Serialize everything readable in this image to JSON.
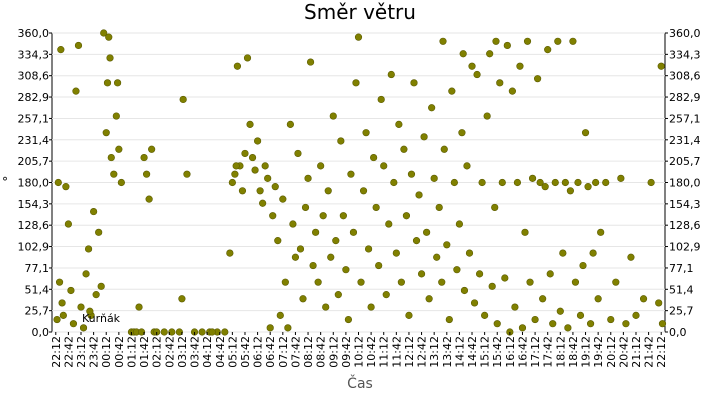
{
  "chart_data": {
    "type": "scatter",
    "title": "Směr větru",
    "xlabel": "Čas",
    "ylabel": "°",
    "annotation": "Kurňák",
    "color": "#808000",
    "grid": true,
    "xlim": [
      -0.15,
      24.15
    ],
    "ylim": [
      0,
      360
    ],
    "xticks": [
      {
        "value": 0,
        "label": "22:12"
      },
      {
        "value": 0.5,
        "label": "22:42"
      },
      {
        "value": 1,
        "label": "23:12"
      },
      {
        "value": 1.5,
        "label": "23:42"
      },
      {
        "value": 2,
        "label": "00:12"
      },
      {
        "value": 2.5,
        "label": "00:42"
      },
      {
        "value": 3,
        "label": "01:12"
      },
      {
        "value": 3.5,
        "label": "01:42"
      },
      {
        "value": 4,
        "label": "02:12"
      },
      {
        "value": 4.5,
        "label": "02:42"
      },
      {
        "value": 5,
        "label": "03:12"
      },
      {
        "value": 5.5,
        "label": "03:42"
      },
      {
        "value": 6,
        "label": "04:12"
      },
      {
        "value": 6.5,
        "label": "04:42"
      },
      {
        "value": 7,
        "label": "05:12"
      },
      {
        "value": 7.5,
        "label": "05:42"
      },
      {
        "value": 8,
        "label": "06:12"
      },
      {
        "value": 8.5,
        "label": "06:42"
      },
      {
        "value": 9,
        "label": "07:12"
      },
      {
        "value": 9.5,
        "label": "07:42"
      },
      {
        "value": 10,
        "label": "08:12"
      },
      {
        "value": 10.5,
        "label": "08:42"
      },
      {
        "value": 11,
        "label": "09:12"
      },
      {
        "value": 11.5,
        "label": "09:42"
      },
      {
        "value": 12,
        "label": "10:12"
      },
      {
        "value": 12.5,
        "label": "10:42"
      },
      {
        "value": 13,
        "label": "11:12"
      },
      {
        "value": 13.5,
        "label": "11:42"
      },
      {
        "value": 14,
        "label": "12:12"
      },
      {
        "value": 14.5,
        "label": "12:42"
      },
      {
        "value": 15,
        "label": "13:12"
      },
      {
        "value": 15.5,
        "label": "13:42"
      },
      {
        "value": 16,
        "label": "14:12"
      },
      {
        "value": 16.5,
        "label": "14:42"
      },
      {
        "value": 17,
        "label": "15:12"
      },
      {
        "value": 17.5,
        "label": "15:42"
      },
      {
        "value": 18,
        "label": "16:12"
      },
      {
        "value": 18.5,
        "label": "16:42"
      },
      {
        "value": 19,
        "label": "17:12"
      },
      {
        "value": 19.5,
        "label": "17:42"
      },
      {
        "value": 20,
        "label": "18:12"
      },
      {
        "value": 20.5,
        "label": "18:42"
      },
      {
        "value": 21,
        "label": "19:12"
      },
      {
        "value": 21.5,
        "label": "19:42"
      },
      {
        "value": 22,
        "label": "20:12"
      },
      {
        "value": 22.5,
        "label": "20:42"
      },
      {
        "value": 23,
        "label": "21:12"
      },
      {
        "value": 23.5,
        "label": "21:42"
      },
      {
        "value": 24,
        "label": "22:12"
      }
    ],
    "yticks": [
      {
        "value": 0,
        "label": "0,0"
      },
      {
        "value": 25.7,
        "label": "25,7"
      },
      {
        "value": 51.4,
        "label": "51,4"
      },
      {
        "value": 77.1,
        "label": "77,1"
      },
      {
        "value": 102.9,
        "label": "102,9"
      },
      {
        "value": 128.6,
        "label": "128,6"
      },
      {
        "value": 154.3,
        "label": "154,3"
      },
      {
        "value": 180,
        "label": "180,0"
      },
      {
        "value": 205.7,
        "label": "205,7"
      },
      {
        "value": 231.4,
        "label": "231,4"
      },
      {
        "value": 257.1,
        "label": "257,1"
      },
      {
        "value": 282.9,
        "label": "282,9"
      },
      {
        "value": 308.6,
        "label": "308,6"
      },
      {
        "value": 334.3,
        "label": "334,3"
      },
      {
        "value": 360,
        "label": "360,0"
      }
    ],
    "x": [
      0.05,
      0.1,
      0.15,
      0.2,
      0.3,
      0.4,
      0.5,
      0.6,
      0.7,
      0.8,
      0.9,
      1.0,
      1.1,
      1.2,
      1.3,
      1.4,
      1.5,
      1.6,
      1.7,
      1.8,
      1.9,
      2.0,
      2.05,
      2.1,
      2.15,
      2.2,
      2.3,
      2.4,
      2.5,
      2.6,
      3.0,
      3.1,
      3.2,
      3.3,
      3.4,
      3.5,
      3.6,
      3.7,
      3.8,
      3.9,
      4.0,
      4.3,
      4.6,
      4.9,
      5.0,
      5.05,
      5.2,
      5.5,
      5.8,
      6.1,
      6.4,
      6.7,
      6.9,
      7.0,
      7.1,
      7.2,
      7.3,
      7.4,
      7.5,
      7.6,
      7.7,
      7.8,
      7.9,
      8.0,
      8.1,
      8.2,
      8.3,
      8.4,
      8.5,
      8.6,
      8.7,
      8.8,
      8.9,
      9.0,
      9.1,
      9.2,
      9.3,
      9.4,
      9.5,
      9.6,
      9.7,
      9.8,
      9.9,
      10.0,
      10.1,
      10.2,
      10.3,
      10.4,
      10.5,
      10.6,
      10.7,
      10.8,
      10.9,
      11.0,
      11.1,
      11.2,
      11.3,
      11.4,
      11.5,
      11.6,
      11.7,
      11.8,
      11.9,
      12.0,
      12.1,
      12.2,
      12.3,
      12.4,
      12.5,
      12.6,
      12.7,
      12.8,
      12.9,
      13.0,
      13.1,
      13.2,
      13.3,
      13.4,
      13.5,
      13.6,
      13.7,
      13.8,
      13.9,
      14.0,
      14.1,
      14.2,
      14.3,
      14.4,
      14.5,
      14.6,
      14.7,
      14.8,
      14.9,
      15.0,
      15.1,
      15.2,
      15.3,
      15.4,
      15.5,
      15.6,
      15.7,
      15.8,
      15.9,
      16.0,
      16.1,
      16.2,
      16.3,
      16.4,
      16.5,
      16.6,
      16.7,
      16.8,
      16.9,
      17.0,
      17.1,
      17.2,
      17.3,
      17.4,
      17.5,
      17.6,
      17.7,
      17.8,
      17.9,
      18.0,
      18.1,
      18.2,
      18.3,
      18.4,
      18.5,
      18.6,
      18.7,
      18.8,
      18.9,
      19.0,
      19.1,
      19.2,
      19.3,
      19.4,
      19.5,
      19.6,
      19.7,
      19.8,
      19.9,
      20.0,
      20.1,
      20.2,
      20.3,
      20.4,
      20.5,
      20.6,
      20.7,
      20.8,
      20.9,
      21.0,
      21.1,
      21.2,
      21.3,
      21.4,
      21.5,
      21.6,
      21.8,
      22.0,
      22.2,
      22.4,
      22.6,
      22.8,
      23.0,
      23.3,
      23.6,
      23.9,
      24.0,
      24.05,
      0.25,
      1.35,
      2.45,
      6.2,
      7.15,
      15.35,
      16.15,
      17.45
    ],
    "values": [
      15,
      180,
      60,
      340,
      20,
      175,
      130,
      50,
      10,
      290,
      345,
      30,
      5,
      70,
      100,
      20,
      145,
      45,
      120,
      55,
      360,
      240,
      300,
      355,
      330,
      210,
      190,
      260,
      220,
      180,
      0,
      0,
      0,
      30,
      0,
      210,
      190,
      160,
      220,
      0,
      0,
      0,
      0,
      0,
      40,
      280,
      190,
      0,
      0,
      0,
      0,
      0,
      95,
      180,
      190,
      320,
      200,
      170,
      215,
      330,
      250,
      210,
      195,
      230,
      170,
      155,
      200,
      185,
      5,
      140,
      175,
      110,
      20,
      160,
      60,
      5,
      250,
      130,
      90,
      215,
      100,
      40,
      150,
      185,
      325,
      80,
      120,
      60,
      200,
      140,
      30,
      170,
      90,
      260,
      110,
      45,
      230,
      140,
      75,
      15,
      190,
      120,
      300,
      355,
      60,
      170,
      240,
      100,
      30,
      210,
      150,
      80,
      280,
      200,
      45,
      130,
      310,
      180,
      95,
      250,
      60,
      220,
      140,
      20,
      190,
      300,
      110,
      165,
      70,
      235,
      120,
      40,
      270,
      185,
      90,
      150,
      60,
      220,
      105,
      15,
      290,
      180,
      75,
      130,
      240,
      50,
      200,
      95,
      320,
      35,
      310,
      70,
      180,
      20,
      260,
      335,
      55,
      150,
      10,
      300,
      180,
      65,
      345,
      0,
      290,
      30,
      180,
      320,
      5,
      120,
      350,
      60,
      185,
      15,
      305,
      180,
      40,
      175,
      340,
      70,
      10,
      180,
      350,
      25,
      95,
      180,
      5,
      170,
      350,
      60,
      180,
      20,
      80,
      240,
      175,
      10,
      95,
      180,
      40,
      120,
      180,
      15,
      60,
      185,
      10,
      90,
      20,
      40,
      180,
      35,
      320,
      10,
      35,
      25,
      300,
      0,
      200,
      350,
      335,
      350
    ]
  }
}
